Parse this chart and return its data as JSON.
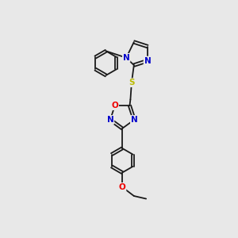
{
  "background_color": "#e8e8e8",
  "bond_color": "#1a1a1a",
  "atom_colors": {
    "N": "#0000cc",
    "O": "#ee0000",
    "S": "#bbbb00",
    "C": "#1a1a1a"
  },
  "font_size": 7.5,
  "figsize": [
    3.0,
    3.0
  ],
  "dpi": 100,
  "lw": 1.3
}
